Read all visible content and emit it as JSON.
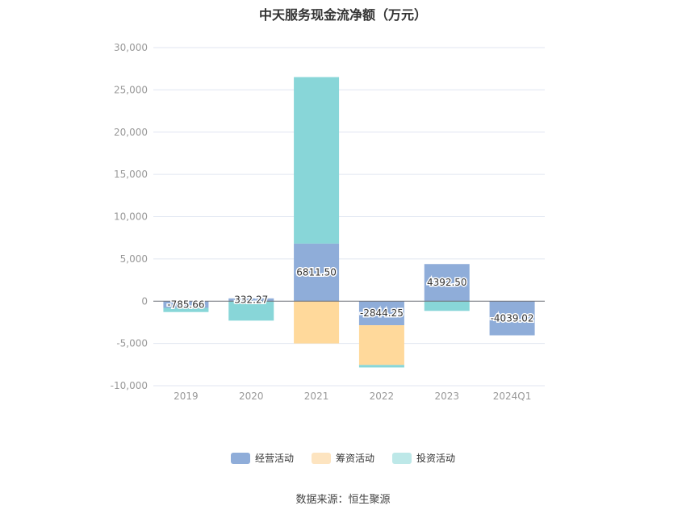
{
  "chart_data": {
    "type": "bar",
    "stacked": true,
    "title": "中天服务现金流净额（万元）",
    "categories": [
      "2019",
      "2020",
      "2021",
      "2022",
      "2023",
      "2024Q1"
    ],
    "ylim": [
      -10000,
      30000
    ],
    "yticks": [
      30000,
      25000,
      20000,
      15000,
      10000,
      5000,
      0,
      -5000,
      -10000
    ],
    "ytick_labels": [
      "30,000",
      "25,000",
      "20,000",
      "15,000",
      "10,000",
      "5,000",
      "0",
      "-5,000",
      "-10,000"
    ],
    "grid": true,
    "legend_position": "bottom",
    "series": [
      {
        "name": "经营活动",
        "color": "#8fadd9",
        "values": [
          -785.66,
          332.27,
          6811.5,
          -2844.25,
          4392.5,
          -4039.02
        ],
        "labels": [
          "-785.66",
          "332.27",
          "6811.50",
          "-2844.25",
          "4392.50",
          "-4039.02"
        ]
      },
      {
        "name": "筹资活动",
        "color": "#ffd99b",
        "values": [
          0,
          0,
          -5000,
          -4700,
          0,
          0
        ]
      },
      {
        "name": "投资活动",
        "color": "#88d6d8",
        "values": [
          -500,
          -2300,
          19700,
          -300,
          -1150,
          0
        ]
      }
    ],
    "legend_colors": [
      "#8fadd9",
      "#fde4c0",
      "#bde8e8"
    ]
  },
  "source": "数据来源：恒生聚源"
}
